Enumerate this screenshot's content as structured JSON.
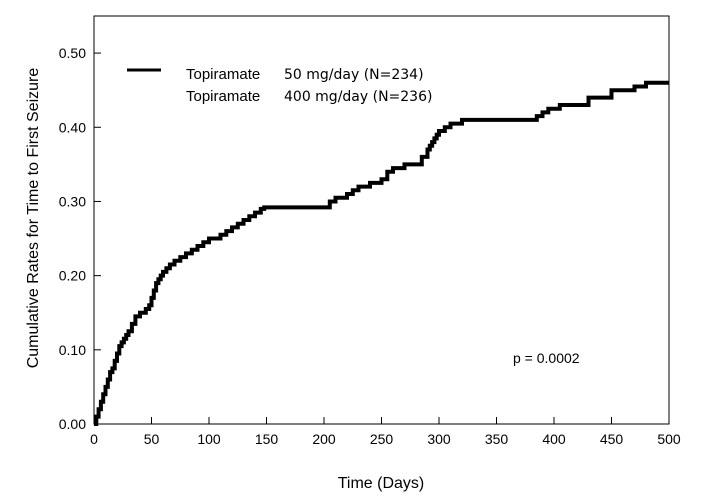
{
  "chart_data": {
    "type": "line",
    "title": "",
    "xlabel": "Time (Days)",
    "ylabel": "Cumulative Rates for Time to First Seizure",
    "xlim": [
      0,
      500
    ],
    "ylim": [
      0,
      0.55
    ],
    "xticks": [
      "0",
      "50",
      "100",
      "150",
      "200",
      "250",
      "300",
      "350",
      "400",
      "450",
      "500"
    ],
    "yticks": [
      "0.00",
      "0.10",
      "0.20",
      "0.30",
      "0.40",
      "0.50"
    ],
    "grid": false,
    "step": true,
    "legend": {
      "placement": "top-left",
      "entries": [
        {
          "name": "Topiramate",
          "detail": "50 mg/day (N=234)",
          "line": true
        },
        {
          "name": "Topiramate",
          "detail": "400 mg/day (N=236)",
          "line": false
        }
      ]
    },
    "annotation": "p = 0.0002",
    "series": [
      {
        "name": "Topiramate 50 mg/day (N=234)",
        "x": [
          0,
          2,
          4,
          6,
          8,
          10,
          12,
          14,
          16,
          18,
          20,
          22,
          24,
          26,
          28,
          30,
          33,
          36,
          40,
          45,
          48,
          50,
          52,
          54,
          56,
          58,
          60,
          63,
          66,
          70,
          75,
          80,
          85,
          90,
          95,
          100,
          110,
          115,
          120,
          125,
          130,
          135,
          140,
          145,
          148,
          200,
          205,
          210,
          220,
          225,
          230,
          240,
          250,
          255,
          260,
          270,
          285,
          290,
          292,
          294,
          296,
          298,
          300,
          305,
          310,
          320,
          330,
          385,
          390,
          395,
          405,
          430,
          450,
          470,
          480,
          500
        ],
        "y": [
          0.0,
          0.01,
          0.02,
          0.03,
          0.04,
          0.05,
          0.06,
          0.07,
          0.075,
          0.085,
          0.095,
          0.105,
          0.11,
          0.115,
          0.12,
          0.125,
          0.135,
          0.145,
          0.15,
          0.155,
          0.16,
          0.17,
          0.18,
          0.19,
          0.195,
          0.2,
          0.205,
          0.21,
          0.215,
          0.22,
          0.225,
          0.23,
          0.235,
          0.24,
          0.245,
          0.25,
          0.255,
          0.26,
          0.265,
          0.27,
          0.275,
          0.28,
          0.285,
          0.29,
          0.292,
          0.292,
          0.3,
          0.305,
          0.31,
          0.315,
          0.32,
          0.325,
          0.33,
          0.34,
          0.345,
          0.35,
          0.36,
          0.37,
          0.375,
          0.38,
          0.385,
          0.39,
          0.395,
          0.4,
          0.405,
          0.41,
          0.41,
          0.415,
          0.42,
          0.425,
          0.43,
          0.44,
          0.45,
          0.455,
          0.46,
          0.46
        ]
      }
    ]
  }
}
